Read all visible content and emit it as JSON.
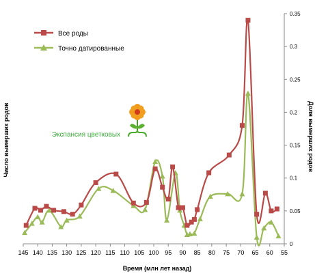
{
  "chart_data": {
    "type": "line",
    "xlabel": "Время (млн лет назад)",
    "ylabel_left": "Число вымерших родов",
    "ylabel_right": "Доля вымерших родов",
    "xlim": [
      145,
      55
    ],
    "ylim": [
      0,
      0.35
    ],
    "x_ticks": [
      145,
      140,
      135,
      130,
      125,
      120,
      115,
      110,
      105,
      100,
      95,
      90,
      85,
      80,
      75,
      70,
      65,
      60,
      55
    ],
    "y_ticks": [
      "0",
      "0.05",
      "0.1",
      "0.15",
      "0.2",
      "0.25",
      "0.3",
      "0.35"
    ],
    "y_tick_values": [
      0,
      0.05,
      0.1,
      0.15,
      0.2,
      0.25,
      0.3,
      0.35
    ],
    "grid": false,
    "legend_position": "top-left",
    "annotation": "Экспансия цветковых",
    "series": [
      {
        "name": "Все роды",
        "color": "#b94a48",
        "marker": "square",
        "points": [
          [
            144,
            0.028
          ],
          [
            141,
            0.054
          ],
          [
            139,
            0.051
          ],
          [
            137,
            0.057
          ],
          [
            134.5,
            0.051
          ],
          [
            131,
            0.049
          ],
          [
            128,
            0.045
          ],
          [
            125,
            0.059
          ],
          [
            120,
            0.093
          ],
          [
            113,
            0.106
          ],
          [
            107,
            0.062
          ],
          [
            102.5,
            0.063
          ],
          [
            99.5,
            0.114
          ],
          [
            97,
            0.086
          ],
          [
            95,
            0.068
          ],
          [
            93.5,
            0.117
          ],
          [
            91.5,
            0.055
          ],
          [
            90,
            0.055
          ],
          [
            88.5,
            0.028
          ],
          [
            87,
            0.033
          ],
          [
            86,
            0.037
          ],
          [
            85,
            0.052
          ],
          [
            81,
            0.108
          ],
          [
            74,
            0.135
          ],
          [
            69.5,
            0.18
          ],
          [
            67.5,
            0.34
          ],
          [
            64.5,
            0.045
          ],
          [
            61.5,
            0.077
          ],
          [
            59.5,
            0.05
          ],
          [
            57.5,
            0.053
          ]
        ]
      },
      {
        "name": "Точно датированные",
        "color": "#9bbb59",
        "marker": "triangle",
        "points": [
          [
            144.5,
            0.017
          ],
          [
            142,
            0.031
          ],
          [
            140,
            0.041
          ],
          [
            138.5,
            0.033
          ],
          [
            136,
            0.051
          ],
          [
            132,
            0.026
          ],
          [
            130,
            0.036
          ],
          [
            125.5,
            0.042
          ],
          [
            119,
            0.084
          ],
          [
            114,
            0.081
          ],
          [
            107,
            0.058
          ],
          [
            103,
            0.052
          ],
          [
            99.5,
            0.125
          ],
          [
            97,
            0.103
          ],
          [
            95.5,
            0.036
          ],
          [
            92.5,
            0.108
          ],
          [
            91,
            0.051
          ],
          [
            89.5,
            0.028
          ],
          [
            88.5,
            0.014
          ],
          [
            87.5,
            0.015
          ],
          [
            86,
            0.016
          ],
          [
            84,
            0.038
          ],
          [
            80.5,
            0.072
          ],
          [
            74.5,
            0.076
          ],
          [
            69.5,
            0.076
          ],
          [
            67.5,
            0.229
          ],
          [
            64.5,
            0.01
          ],
          [
            62,
            0.024
          ],
          [
            59.5,
            0.033
          ],
          [
            57,
            0.012
          ]
        ]
      }
    ]
  }
}
